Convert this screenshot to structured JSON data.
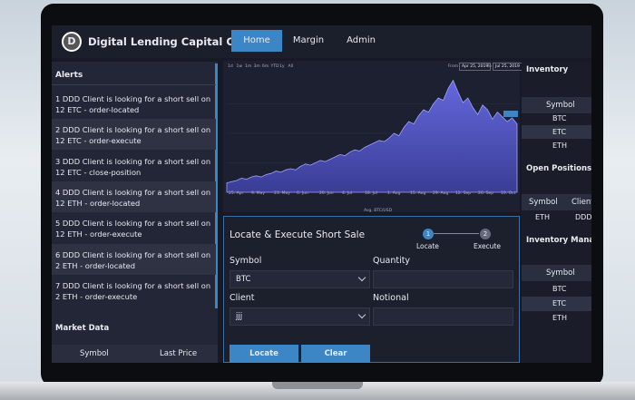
{
  "header": {
    "logo_letter": "D",
    "title": "Digital Lending Capital Corp",
    "nav": [
      "Home",
      "Margin",
      "Admin"
    ],
    "active_nav": 0
  },
  "alerts": {
    "title": "Alerts",
    "items": [
      "1 DDD Client is looking for a short sell on 12 ETC - order-located",
      "2 DDD Client is looking for a short sell on 12 ETC - order-execute",
      "3 DDD Client is looking for a short sell on 12 ETC - close-position",
      "4 DDD Client is looking for a short sell on 12 ETH - order-located",
      "5 DDD Client is looking for a short sell on 12 ETH - order-execute",
      "6 DDD Client is looking for a short sell on 2 ETH - order-located",
      "7 DDD Client is looking for a short sell on 2 ETH - order-execute"
    ]
  },
  "market_data": {
    "title": "Market Data",
    "columns": [
      "Symbol",
      "Last Price"
    ]
  },
  "price_chart": {
    "type": "area",
    "zoom_buttons": [
      "1d",
      "1w",
      "1m",
      "3m",
      "6m",
      "YTD",
      "1y",
      "All"
    ],
    "from_label": "From",
    "from": "Apr 25, 2019",
    "to_label": "To",
    "to": "Jul 25, 2019",
    "x_labels": [
      "25. Apr",
      "9. May",
      "23. May",
      "6. Jun",
      "20. Jun",
      "4. Jul",
      "18. Jul",
      "1. Aug",
      "15. Aug",
      "29. Aug",
      "12. Sep",
      "26. Sep",
      "10. Oct"
    ],
    "legend": "Avg. BTC/USD",
    "color": "#6468dc",
    "ylim": [
      0,
      100
    ],
    "values": [
      8,
      9,
      10,
      12,
      11,
      13,
      14,
      13,
      15,
      16,
      18,
      17,
      19,
      20,
      19,
      22,
      24,
      23,
      25,
      27,
      26,
      28,
      30,
      32,
      31,
      34,
      36,
      35,
      38,
      40,
      42,
      44,
      43,
      46,
      50,
      48,
      55,
      60,
      58,
      65,
      70,
      68,
      75,
      80,
      78,
      88,
      95,
      85,
      76,
      80,
      72,
      66,
      74,
      70,
      62,
      68,
      64,
      60,
      63,
      58
    ]
  },
  "short_sale_form": {
    "title": "Locate & Execute Short Sale",
    "steps": [
      {
        "number": "1",
        "label": "Locate"
      },
      {
        "number": "2",
        "label": "Execute"
      }
    ],
    "symbol_label": "Symbol",
    "symbol_value": "BTC",
    "quantity_label": "Quantity",
    "client_label": "Client",
    "client_value": "jjj",
    "notional_label": "Notional",
    "buttons": [
      "Locate",
      "Clear"
    ]
  },
  "inventory": {
    "title": "Inventory",
    "column": "Symbol",
    "rows": [
      "BTC",
      "ETC",
      "ETH"
    ],
    "selected": 1
  },
  "open_positions": {
    "title": "Open Positions",
    "columns": [
      "Symbol",
      "Client"
    ],
    "rows": [
      [
        "ETH",
        "DDD"
      ]
    ]
  },
  "inventory_management": {
    "title": "Inventory Manage",
    "column": "Symbol",
    "rows": [
      "BTC",
      "ETC",
      "ETH"
    ],
    "selected": 1
  }
}
